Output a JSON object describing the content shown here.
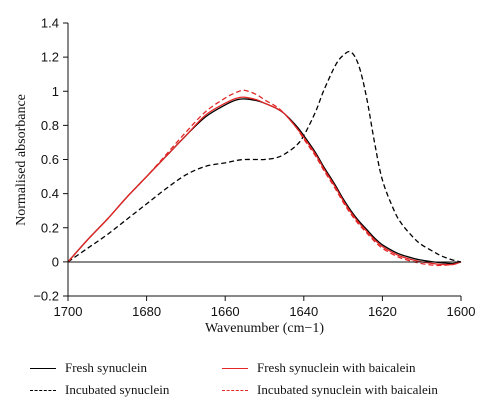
{
  "chart_data": {
    "type": "line",
    "xlabel": "Wavenumber (cm−1)",
    "ylabel": "Normalised absorbance",
    "xlim": [
      1700,
      1600
    ],
    "ylim": [
      -0.2,
      1.4
    ],
    "x_ticks": [
      1700,
      1680,
      1660,
      1640,
      1620,
      1600
    ],
    "y_ticks": [
      -0.2,
      0,
      0.2,
      0.4,
      0.6,
      0.8,
      1,
      1.2,
      1.4
    ],
    "x_tick_labels": [
      "1700",
      "1680",
      "1660",
      "1640",
      "1620",
      "1600"
    ],
    "y_tick_labels": [
      "−0.2",
      "0",
      "0.2",
      "0.4",
      "0.6",
      "0.8",
      "1",
      "1.2",
      "1.4"
    ],
    "grid": false,
    "legend_position": "bottom",
    "x": [
      1700,
      1695,
      1690,
      1685,
      1680,
      1675,
      1670,
      1665,
      1660,
      1657,
      1655,
      1652,
      1650,
      1647,
      1645,
      1642,
      1640,
      1637,
      1635,
      1632,
      1630,
      1628,
      1626,
      1624,
      1622,
      1620,
      1617,
      1615,
      1612,
      1610,
      1607,
      1605,
      1602,
      1600
    ],
    "series": [
      {
        "name": "Fresh synuclein",
        "color": "#000000",
        "dash": "solid",
        "values": [
          0.0,
          0.13,
          0.25,
          0.38,
          0.5,
          0.62,
          0.74,
          0.85,
          0.92,
          0.95,
          0.955,
          0.945,
          0.93,
          0.9,
          0.87,
          0.8,
          0.74,
          0.64,
          0.56,
          0.45,
          0.37,
          0.3,
          0.24,
          0.19,
          0.14,
          0.1,
          0.06,
          0.04,
          0.02,
          0.01,
          0.0,
          -0.005,
          -0.01,
          0.0
        ]
      },
      {
        "name": "Incubated synuclein",
        "color": "#000000",
        "dash": "dashed",
        "values": [
          0.0,
          0.08,
          0.16,
          0.25,
          0.34,
          0.43,
          0.51,
          0.56,
          0.58,
          0.595,
          0.6,
          0.6,
          0.6,
          0.61,
          0.63,
          0.68,
          0.74,
          0.88,
          1.0,
          1.15,
          1.21,
          1.23,
          1.15,
          0.96,
          0.7,
          0.48,
          0.3,
          0.22,
          0.14,
          0.1,
          0.06,
          0.035,
          0.01,
          0.0
        ]
      },
      {
        "name": "Fresh synuclein with baicalein",
        "color": "#e32626",
        "dash": "solid",
        "values": [
          0.0,
          0.13,
          0.25,
          0.38,
          0.5,
          0.62,
          0.74,
          0.86,
          0.93,
          0.96,
          0.965,
          0.95,
          0.93,
          0.9,
          0.87,
          0.79,
          0.73,
          0.63,
          0.55,
          0.44,
          0.36,
          0.29,
          0.23,
          0.18,
          0.13,
          0.09,
          0.05,
          0.03,
          0.01,
          0.0,
          -0.01,
          -0.015,
          -0.015,
          0.0
        ]
      },
      {
        "name": "Incubated synuclein with baicalein",
        "color": "#e32626",
        "dash": "dashed",
        "values": [
          0.0,
          0.13,
          0.25,
          0.38,
          0.5,
          0.63,
          0.76,
          0.88,
          0.96,
          0.995,
          1.005,
          0.98,
          0.95,
          0.91,
          0.87,
          0.79,
          0.72,
          0.62,
          0.54,
          0.43,
          0.35,
          0.28,
          0.22,
          0.17,
          0.12,
          0.08,
          0.04,
          0.02,
          0.0,
          -0.01,
          -0.02,
          -0.02,
          -0.015,
          0.0
        ]
      }
    ]
  }
}
